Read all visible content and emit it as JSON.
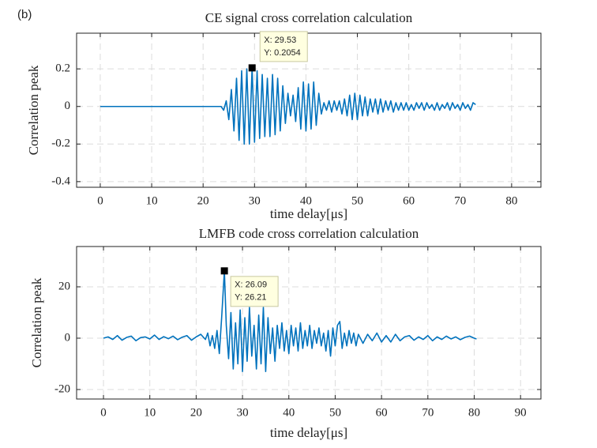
{
  "panel_label": "(b)",
  "chart_data": [
    {
      "type": "line",
      "title": "CE signal cross correlation calculation",
      "x_label": "time delay[μs]",
      "y_label": "Correlation peak",
      "xlim": [
        -4.6,
        85.7
      ],
      "ylim": [
        -0.43,
        0.39
      ],
      "xticks": [
        0,
        10,
        20,
        30,
        40,
        50,
        60,
        70,
        80
      ],
      "yticks": [
        -0.4,
        -0.2,
        0,
        0.2
      ],
      "grid": true,
      "series": [
        {
          "color": "#0072bd",
          "x": [
            0,
            23,
            23.5,
            24,
            24.5,
            25,
            25.5,
            26,
            26.5,
            27,
            27.5,
            28,
            28.5,
            29,
            29.53,
            30,
            30.5,
            31,
            31.5,
            32,
            32.5,
            33,
            33.5,
            34,
            34.5,
            35,
            35.5,
            36,
            36.5,
            37,
            37.5,
            38,
            38.5,
            39,
            39.5,
            40,
            40.5,
            41,
            41.5,
            42,
            42.5,
            43,
            43.5,
            44,
            44.5,
            45,
            45.5,
            46,
            46.5,
            47,
            47.5,
            48,
            48.5,
            49,
            49.5,
            50,
            50.5,
            51,
            51.5,
            52,
            52.5,
            53,
            53.5,
            54,
            54.5,
            55,
            55.5,
            56,
            56.5,
            57,
            57.5,
            58,
            58.5,
            59,
            59.5,
            60,
            60.5,
            61,
            61.5,
            62,
            62.5,
            63,
            63.5,
            64,
            64.5,
            65,
            65.5,
            66,
            66.5,
            67,
            67.5,
            68,
            68.5,
            69,
            69.5,
            70,
            70.5,
            71,
            71.5,
            72,
            72.5,
            73
          ],
          "values": [
            0,
            0,
            0,
            -0.02,
            0.03,
            -0.07,
            0.09,
            -0.13,
            0.15,
            -0.18,
            0.19,
            -0.2,
            0.2,
            -0.2,
            0.2054,
            -0.19,
            0.19,
            -0.17,
            0.17,
            -0.16,
            0.15,
            -0.16,
            0.17,
            -0.15,
            0.15,
            -0.13,
            0.11,
            -0.09,
            0.07,
            -0.05,
            0.06,
            -0.08,
            0.1,
            -0.12,
            0.13,
            -0.13,
            0.12,
            -0.12,
            0.13,
            -0.1,
            0.07,
            -0.04,
            0.02,
            -0.02,
            0.03,
            -0.03,
            0.03,
            -0.02,
            0.03,
            -0.04,
            0.04,
            -0.05,
            0.06,
            -0.07,
            0.07,
            -0.07,
            0.06,
            -0.05,
            0.05,
            -0.05,
            0.04,
            -0.03,
            0.04,
            -0.04,
            0.04,
            -0.03,
            0.03,
            -0.02,
            0.03,
            -0.03,
            0.02,
            -0.02,
            0.02,
            -0.02,
            0.02,
            -0.02,
            0.01,
            -0.02,
            0.02,
            -0.01,
            0.02,
            -0.02,
            0.02,
            -0.01,
            0.01,
            -0.02,
            0.02,
            -0.02,
            0.01,
            -0.01,
            0.02,
            -0.02,
            0.02,
            -0.01,
            0.01,
            -0.02,
            0.02,
            -0.01,
            0.01,
            -0.02,
            0.02,
            0.01
          ]
        }
      ],
      "datatip": {
        "x": 29.53,
        "y": 0.2054,
        "lines": [
          "X: 29.53",
          "Y: 0.2054"
        ]
      }
    },
    {
      "type": "line",
      "title": "LMFB code cross correlation calculation",
      "x_label": "time delay[μs]",
      "y_label": "Correlation peak",
      "xlim": [
        -5.8,
        94.4
      ],
      "ylim": [
        -23.7,
        35.7
      ],
      "xticks": [
        0,
        10,
        20,
        30,
        40,
        50,
        60,
        70,
        80,
        90
      ],
      "yticks": [
        -20,
        0,
        20
      ],
      "grid": true,
      "series": [
        {
          "color": "#0072bd",
          "x": [
            0,
            1,
            2,
            3,
            4,
            5,
            6,
            7,
            8,
            9,
            10,
            11,
            12,
            13,
            14,
            15,
            16,
            17,
            18,
            19,
            20,
            21,
            22,
            22.5,
            23,
            23.5,
            24,
            24.5,
            25,
            25.5,
            26.09,
            26.5,
            27,
            27.5,
            28,
            28.5,
            29,
            29.5,
            30,
            30.5,
            31,
            31.5,
            32,
            32.5,
            33,
            33.5,
            34,
            34.5,
            35,
            35.5,
            36,
            36.5,
            37,
            37.5,
            38,
            38.5,
            39,
            39.5,
            40,
            40.5,
            41,
            41.5,
            42,
            42.5,
            43,
            43.5,
            44,
            44.5,
            45,
            45.5,
            46,
            46.5,
            47,
            47.5,
            48,
            48.5,
            49,
            49.5,
            50,
            50.5,
            51,
            51.5,
            52,
            52.5,
            53,
            53.5,
            54,
            54.5,
            55,
            56,
            57,
            58,
            59,
            60,
            61,
            62,
            63,
            64,
            65,
            66,
            67,
            68,
            69,
            70,
            71,
            72,
            73,
            74,
            75,
            76,
            77,
            78,
            79,
            80,
            80.5
          ],
          "values": [
            0,
            0.5,
            -0.5,
            1,
            -0.8,
            0.3,
            0.8,
            -1,
            0.2,
            0.5,
            -0.3,
            1.2,
            -0.5,
            0.6,
            -0.2,
            0.8,
            -0.6,
            0.4,
            1,
            -0.8,
            0.5,
            1.5,
            -0.5,
            2,
            -3,
            1,
            -4,
            3,
            -6,
            8,
            26.21,
            5,
            -8,
            10,
            -12,
            6,
            -10,
            11,
            -13,
            8,
            -9,
            12,
            -7,
            5,
            -12,
            9,
            -10,
            12,
            -13,
            8,
            -6,
            4,
            -9,
            5,
            -4,
            6,
            -5,
            3,
            -6,
            5,
            -3,
            4,
            -5,
            6,
            -4,
            3,
            -3,
            5,
            -4,
            3,
            -2,
            4,
            -3,
            2,
            -5,
            3,
            -7,
            4,
            -3,
            5,
            6.5,
            -4,
            2,
            -3,
            3,
            -2,
            2,
            -3,
            1.5,
            -2,
            1.5,
            -1,
            2,
            -1.5,
            1,
            -1.5,
            1.5,
            -1,
            0.5,
            1,
            -0.8,
            0.5,
            -0.5,
            1,
            -1,
            0.5,
            -0.5,
            0.8,
            -0.3,
            0.5,
            -0.6,
            0.3,
            0.8,
            0,
            -0.3
          ]
        }
      ],
      "datatip": {
        "x": 26.09,
        "y": 26.21,
        "lines": [
          "X: 26.09",
          "Y: 26.21"
        ]
      }
    }
  ]
}
